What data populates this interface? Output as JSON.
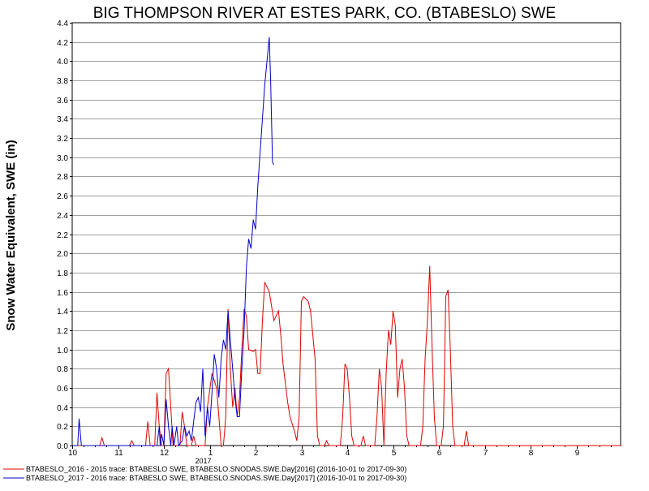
{
  "chart_data": {
    "type": "line",
    "title": "BIG THOMPSON RIVER AT ESTES PARK, CO. (BTABESLO) SWE",
    "xlabel": "",
    "ylabel": "Snow Water Equivalent, SWE (in)",
    "ylim": [
      0,
      4.4
    ],
    "y_ticks": [
      "0.0",
      "0.2",
      "0.4",
      "0.6",
      "0.8",
      "1.0",
      "1.2",
      "1.4",
      "1.6",
      "1.8",
      "2.0",
      "2.2",
      "2.4",
      "2.6",
      "2.8",
      "3.0",
      "3.2",
      "3.4",
      "3.6",
      "3.8",
      "4.0",
      "4.2",
      "4.4"
    ],
    "x_ticks": [
      {
        "label": "10",
        "month": 0
      },
      {
        "label": "11",
        "month": 1
      },
      {
        "label": "12",
        "month": 2
      },
      {
        "label": "1",
        "month": 3
      },
      {
        "label": "2",
        "month": 4
      },
      {
        "label": "3",
        "month": 5
      },
      {
        "label": "4",
        "month": 6
      },
      {
        "label": "5",
        "month": 7
      },
      {
        "label": "6",
        "month": 8
      },
      {
        "label": "7",
        "month": 9
      },
      {
        "label": "8",
        "month": 10
      },
      {
        "label": "9",
        "month": 11
      }
    ],
    "year_label": {
      "text": "2017",
      "month": 3
    },
    "grid": true,
    "legend_position": "bottom",
    "series": [
      {
        "name": "BTABESLO_2016 - 2015 trace: BTABESLO SWE, BTABESLO.SNODAS.SWE.Day[2016] (2016-10-01 to 2017-09-30)",
        "color": "#e00000",
        "points": [
          [
            0.0,
            0
          ],
          [
            0.6,
            0
          ],
          [
            0.65,
            0.08
          ],
          [
            0.7,
            0
          ],
          [
            1.25,
            0
          ],
          [
            1.3,
            0.05
          ],
          [
            1.35,
            0
          ],
          [
            1.6,
            0
          ],
          [
            1.65,
            0.25
          ],
          [
            1.7,
            0
          ],
          [
            1.8,
            0
          ],
          [
            1.85,
            0.55
          ],
          [
            1.9,
            0.2
          ],
          [
            1.95,
            0
          ],
          [
            2.0,
            0
          ],
          [
            2.05,
            0.75
          ],
          [
            2.1,
            0.8
          ],
          [
            2.15,
            0.4
          ],
          [
            2.2,
            0
          ],
          [
            2.35,
            0
          ],
          [
            2.4,
            0.35
          ],
          [
            2.45,
            0.2
          ],
          [
            2.5,
            0
          ],
          [
            2.6,
            0
          ],
          [
            2.65,
            0.1
          ],
          [
            2.7,
            0
          ],
          [
            2.9,
            0
          ],
          [
            2.95,
            0.4
          ],
          [
            3.05,
            0.75
          ],
          [
            3.15,
            0.6
          ],
          [
            3.2,
            0.3
          ],
          [
            3.25,
            0
          ],
          [
            3.3,
            0
          ],
          [
            3.35,
            0.3
          ],
          [
            3.4,
            1.42
          ],
          [
            3.45,
            0.8
          ],
          [
            3.5,
            0.4
          ],
          [
            3.55,
            0.6
          ],
          [
            3.6,
            0.3
          ],
          [
            3.65,
            0.5
          ],
          [
            3.7,
            1.0
          ],
          [
            3.75,
            1.42
          ],
          [
            3.8,
            1.35
          ],
          [
            3.85,
            1.0
          ],
          [
            3.95,
            0.98
          ],
          [
            4.0,
            1.0
          ],
          [
            4.05,
            0.75
          ],
          [
            4.1,
            0.75
          ],
          [
            4.15,
            1.3
          ],
          [
            4.2,
            1.7
          ],
          [
            4.3,
            1.6
          ],
          [
            4.4,
            1.3
          ],
          [
            4.5,
            1.4
          ],
          [
            4.55,
            1.15
          ],
          [
            4.6,
            0.85
          ],
          [
            4.7,
            0.45
          ],
          [
            4.75,
            0.3
          ],
          [
            4.85,
            0.15
          ],
          [
            4.9,
            0.05
          ],
          [
            4.95,
            0.3
          ],
          [
            5.0,
            1.5
          ],
          [
            5.05,
            1.55
          ],
          [
            5.15,
            1.5
          ],
          [
            5.2,
            1.4
          ],
          [
            5.3,
            0.9
          ],
          [
            5.35,
            0.1
          ],
          [
            5.4,
            0
          ],
          [
            5.5,
            0
          ],
          [
            5.55,
            0.05
          ],
          [
            5.6,
            0
          ],
          [
            5.85,
            0
          ],
          [
            5.9,
            0.3
          ],
          [
            5.95,
            0.85
          ],
          [
            6.0,
            0.8
          ],
          [
            6.05,
            0.5
          ],
          [
            6.1,
            0.1
          ],
          [
            6.15,
            0
          ],
          [
            6.3,
            0
          ],
          [
            6.35,
            0.1
          ],
          [
            6.4,
            0
          ],
          [
            6.6,
            0
          ],
          [
            6.65,
            0.3
          ],
          [
            6.7,
            0.8
          ],
          [
            6.75,
            0.6
          ],
          [
            6.8,
            0
          ],
          [
            6.85,
            0.75
          ],
          [
            6.9,
            1.2
          ],
          [
            6.95,
            1.05
          ],
          [
            7.0,
            1.4
          ],
          [
            7.05,
            1.25
          ],
          [
            7.1,
            0.5
          ],
          [
            7.15,
            0.8
          ],
          [
            7.2,
            0.9
          ],
          [
            7.25,
            0.6
          ],
          [
            7.3,
            0.1
          ],
          [
            7.35,
            0
          ],
          [
            7.6,
            0
          ],
          [
            7.65,
            0.2
          ],
          [
            7.7,
            0.9
          ],
          [
            7.75,
            1.3
          ],
          [
            7.8,
            1.87
          ],
          [
            7.85,
            1.05
          ],
          [
            7.9,
            0.3
          ],
          [
            7.95,
            0
          ],
          [
            8.05,
            0
          ],
          [
            8.1,
            0.2
          ],
          [
            8.15,
            1.55
          ],
          [
            8.2,
            1.62
          ],
          [
            8.25,
            1.0
          ],
          [
            8.3,
            0.2
          ],
          [
            8.35,
            0
          ],
          [
            8.55,
            0
          ],
          [
            8.6,
            0.15
          ],
          [
            8.65,
            0
          ],
          [
            11.99,
            0
          ]
        ]
      },
      {
        "name": "BTABESLO_2017 - 2016 trace: BTABESLO SWE, BTABESLO.SNODAS.SWE.Day[2017] (2016-10-01 to 2017-09-30)",
        "color": "#0000cc",
        "points": [
          [
            0.0,
            0
          ],
          [
            0.12,
            0
          ],
          [
            0.15,
            0.28
          ],
          [
            0.2,
            0
          ],
          [
            1.85,
            0
          ],
          [
            1.9,
            0.2
          ],
          [
            1.92,
            0
          ],
          [
            1.95,
            0.12
          ],
          [
            2.0,
            0
          ],
          [
            2.05,
            0.48
          ],
          [
            2.1,
            0.2
          ],
          [
            2.15,
            0
          ],
          [
            2.18,
            0.2
          ],
          [
            2.22,
            0
          ],
          [
            2.28,
            0.2
          ],
          [
            2.32,
            0
          ],
          [
            2.4,
            0.05
          ],
          [
            2.45,
            0.2
          ],
          [
            2.5,
            0.1
          ],
          [
            2.55,
            0.15
          ],
          [
            2.6,
            0.05
          ],
          [
            2.65,
            0.25
          ],
          [
            2.7,
            0.45
          ],
          [
            2.75,
            0.5
          ],
          [
            2.8,
            0.35
          ],
          [
            2.85,
            0.8
          ],
          [
            2.9,
            0.1
          ],
          [
            2.95,
            0.4
          ],
          [
            3.0,
            0.2
          ],
          [
            3.05,
            0.55
          ],
          [
            3.1,
            0.95
          ],
          [
            3.15,
            0.8
          ],
          [
            3.2,
            0.5
          ],
          [
            3.25,
            0.9
          ],
          [
            3.3,
            1.1
          ],
          [
            3.35,
            1.0
          ],
          [
            3.4,
            1.4
          ],
          [
            3.45,
            1.1
          ],
          [
            3.5,
            0.8
          ],
          [
            3.55,
            0.5
          ],
          [
            3.6,
            0.3
          ],
          [
            3.65,
            0.3
          ],
          [
            3.7,
            0.8
          ],
          [
            3.75,
            1.2
          ],
          [
            3.8,
            1.85
          ],
          [
            3.85,
            2.15
          ],
          [
            3.9,
            2.05
          ],
          [
            3.95,
            2.35
          ],
          [
            4.0,
            2.25
          ],
          [
            4.05,
            2.7
          ],
          [
            4.1,
            3.05
          ],
          [
            4.15,
            3.4
          ],
          [
            4.2,
            3.75
          ],
          [
            4.25,
            4.0
          ],
          [
            4.3,
            4.25
          ],
          [
            4.33,
            3.8
          ],
          [
            4.37,
            2.95
          ],
          [
            4.4,
            2.92
          ]
        ]
      }
    ]
  }
}
